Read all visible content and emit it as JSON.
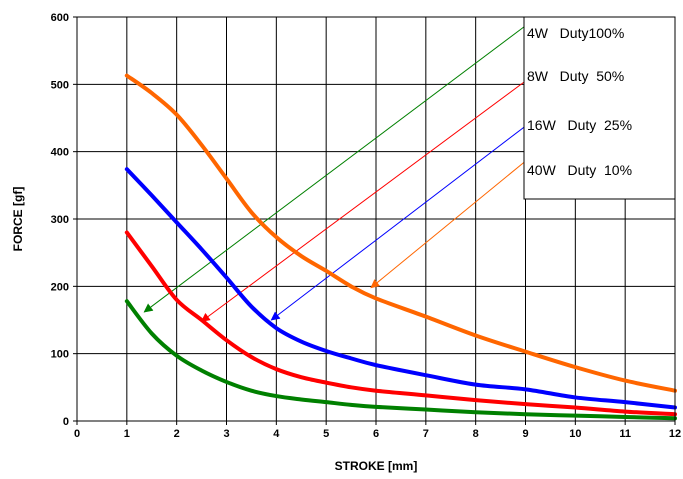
{
  "chart_data": {
    "type": "line",
    "xlabel": "STROKE [mm]",
    "ylabel": "FORCE [gf]",
    "xlim": [
      0,
      12
    ],
    "ylim": [
      0,
      600
    ],
    "xticks": [
      "0",
      "1",
      "2",
      "3",
      "4",
      "5",
      "6",
      "7",
      "8",
      "9",
      "10",
      "11",
      "12"
    ],
    "yticks": [
      "0",
      "100",
      "200",
      "300",
      "400",
      "500",
      "600"
    ],
    "grid": true,
    "legend_position": "top-right",
    "x": [
      1,
      1.5,
      2,
      2.5,
      3,
      3.5,
      4,
      4.5,
      5,
      5.5,
      6,
      7,
      8,
      9,
      10,
      11,
      12
    ],
    "series": [
      {
        "name": "4W   Duty100%",
        "color": "#008000",
        "values": [
          178,
          130,
          97,
          75,
          58,
          45,
          37,
          32,
          28,
          24,
          21,
          17,
          13,
          10,
          8,
          6,
          4
        ],
        "arrow_from": [
          9.0,
          587
        ],
        "arrow_to": [
          1.35,
          162
        ]
      },
      {
        "name": "8W   Duty  50%",
        "color": "#ff0000",
        "values": [
          280,
          230,
          180,
          150,
          120,
          95,
          77,
          65,
          57,
          50,
          45,
          38,
          31,
          25,
          20,
          14,
          10
        ],
        "arrow_from": [
          9.0,
          505
        ],
        "arrow_to": [
          2.5,
          148
        ]
      },
      {
        "name": "16W   Duty  25%",
        "color": "#0000ff",
        "values": [
          374,
          335,
          295,
          255,
          213,
          170,
          138,
          118,
          104,
          93,
          83,
          68,
          54,
          47,
          35,
          28,
          20
        ],
        "arrow_from": [
          9.0,
          438
        ],
        "arrow_to": [
          3.9,
          150
        ]
      },
      {
        "name": "40W   Duty  10%",
        "color": "#ff6600",
        "values": [
          513,
          487,
          455,
          410,
          360,
          310,
          273,
          245,
          223,
          200,
          182,
          155,
          127,
          103,
          80,
          60,
          45
        ],
        "arrow_from": [
          9.0,
          386
        ],
        "arrow_to": [
          5.9,
          198
        ]
      }
    ]
  }
}
